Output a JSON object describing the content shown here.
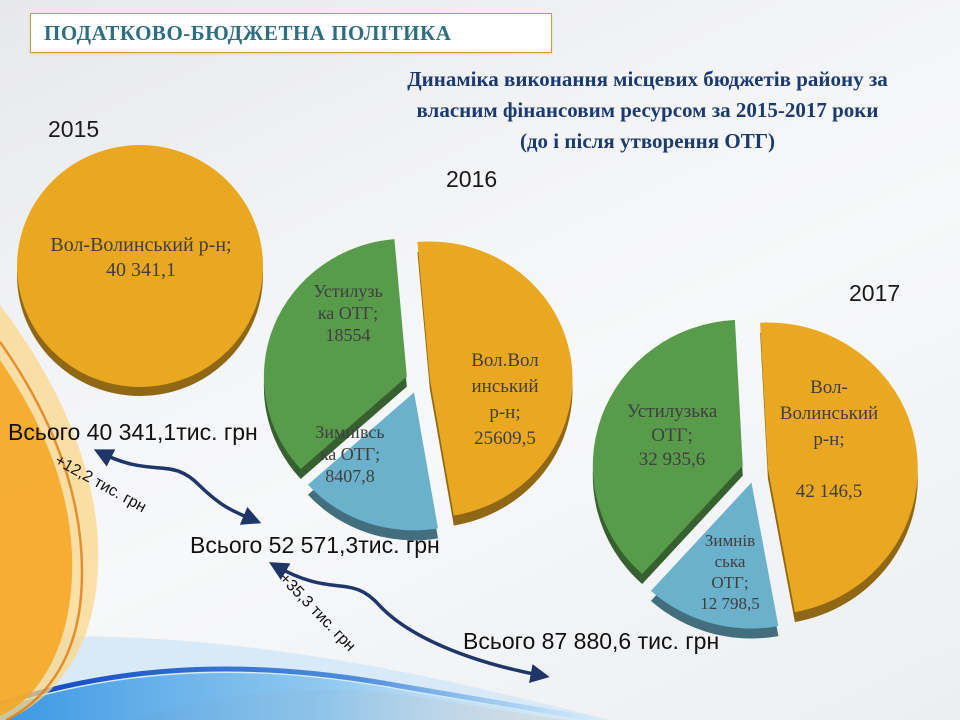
{
  "slide_title": "ПОДАТКОВО-БЮДЖЕТНА ПОЛІТИКА",
  "heading": "Динаміка виконання місцевих бюджетів району за\nвласним фінансовим ресурсом за 2015-2017 роки\n(до і після утворення ОТГ)",
  "units": "тис. грн",
  "colors": {
    "orange_slice": "#E9A722",
    "green_slice": "#579B4B",
    "blue_slice": "#6BB1CB",
    "arrow_navy": "#1F3768",
    "title_teal": "#2E6E80",
    "gold_border": "#C9A22C",
    "heading_navy": "#1B3A6E"
  },
  "chart_data": [
    {
      "type": "pie",
      "title": "2015",
      "total": 40341.1,
      "total_label": "Всього 40 341,1тис. грн",
      "categories": [
        "Вол-Волинський р-н"
      ],
      "values": [
        40341.1
      ],
      "slices": [
        {
          "name": "Вол-Волинський р-н",
          "value": 40341.1,
          "color": "#E9A722",
          "label_lines": [
            "Вол-Волинський р-н;",
            "40 341,1"
          ]
        }
      ]
    },
    {
      "type": "pie",
      "title": "2016",
      "total": 52571.3,
      "total_label": "Всього 52 571,3тис. грн",
      "categories": [
        "Вол.Волинський р-н",
        "Зимнівська ОТГ",
        "Устилузька ОТГ"
      ],
      "values": [
        25609.5,
        8407.8,
        18554
      ],
      "slices": [
        {
          "name": "Вол.Волинський р-н",
          "value": 25609.5,
          "color": "#E9A722",
          "label_lines": [
            "Вол.Вол",
            "инський",
            "р-н;",
            "25609,5"
          ]
        },
        {
          "name": "Зимнівська ОТГ",
          "value": 8407.8,
          "color": "#6BB1CB",
          "label_lines": [
            "Зимнівсь",
            "ка ОТГ;",
            "8407,8"
          ]
        },
        {
          "name": "Устилузька ОТГ",
          "value": 18554,
          "color": "#579B4B",
          "label_lines": [
            "Устилузь",
            "ка ОТГ;",
            "18554"
          ]
        }
      ]
    },
    {
      "type": "pie",
      "title": "2017",
      "total": 87880.6,
      "total_label": "Всього 87 880,6 тис. грн",
      "categories": [
        "Вол-Волинський р-н",
        "Зимнівська ОТГ",
        "Устилузька ОТГ"
      ],
      "values": [
        42146.5,
        12798.5,
        32935.6
      ],
      "slices": [
        {
          "name": "Вол-Волинський р-н",
          "value": 42146.5,
          "color": "#E9A722",
          "label_lines": [
            "Вол-",
            "Волинський",
            "р-н;",
            "",
            "42 146,5"
          ]
        },
        {
          "name": "Зимнівська ОТГ",
          "value": 12798.5,
          "color": "#6BB1CB",
          "label_lines": [
            "Зимнів",
            "ська",
            "ОТГ;",
            "12 798,5"
          ]
        },
        {
          "name": "Устилузька ОТГ",
          "value": 32935.6,
          "color": "#579B4B",
          "label_lines": [
            "Устилузька",
            "ОТГ;",
            "32 935,6"
          ]
        }
      ]
    }
  ],
  "arrows": [
    {
      "label": "+12,2 тис. грн"
    },
    {
      "label": "+35,3 тис. грн"
    }
  ]
}
